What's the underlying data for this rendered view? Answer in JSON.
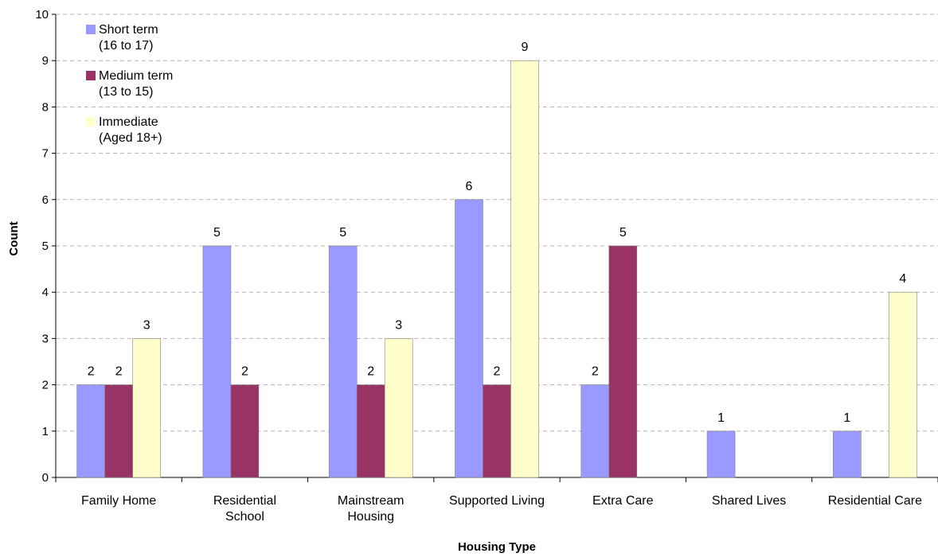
{
  "chart_data": {
    "type": "bar",
    "title": "",
    "xlabel": "Housing Type",
    "ylabel": "Count",
    "ylim": [
      0,
      10
    ],
    "yticks": [
      0,
      1,
      2,
      3,
      4,
      5,
      6,
      7,
      8,
      9,
      10
    ],
    "grid": true,
    "legend_position": "top-left",
    "categories": [
      [
        "Family Home"
      ],
      [
        "Residential",
        "School"
      ],
      [
        "Mainstream",
        "Housing"
      ],
      [
        "Supported Living"
      ],
      [
        "Extra Care"
      ],
      [
        "Shared Lives"
      ],
      [
        "Residential Care"
      ]
    ],
    "series": [
      {
        "name": [
          "Short term",
          "(16 to 17)"
        ],
        "color": "#9999ff",
        "values": [
          2,
          5,
          5,
          6,
          2,
          1,
          1
        ]
      },
      {
        "name": [
          "Medium term",
          "(13 to 15)"
        ],
        "color": "#993366",
        "values": [
          2,
          2,
          2,
          2,
          5,
          null,
          null
        ]
      },
      {
        "name": [
          "Immediate",
          "(Aged 18+)"
        ],
        "color": "#ffffcc",
        "values": [
          3,
          null,
          3,
          9,
          null,
          null,
          4
        ]
      }
    ]
  }
}
